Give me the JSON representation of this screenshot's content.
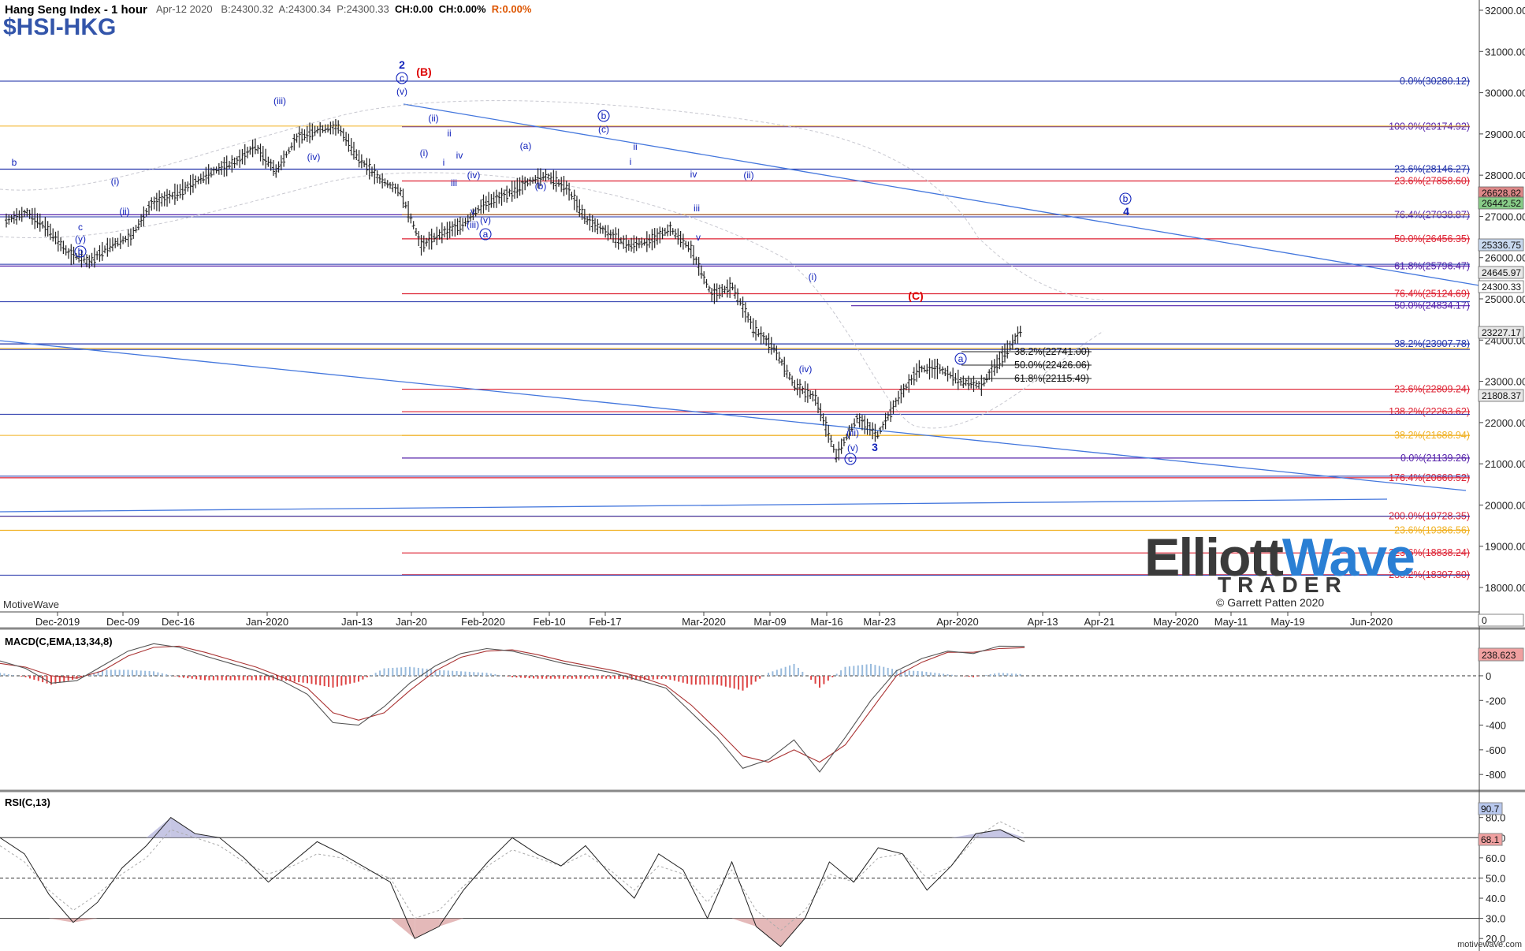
{
  "header": {
    "title": "Hang Seng Index - 1 hour",
    "symbol": "$HSI-HKG",
    "date": "Apr-12 2020",
    "bid": "B:24300.32",
    "ask": "A:24300.34",
    "last": "P:24300.33",
    "change": "CH:0.00",
    "change_pct": "CH:0.00%",
    "range": "R:0.00%"
  },
  "branding": {
    "app_name": "MotiveWave",
    "logo_line1_a": "Elliott",
    "logo_line1_b": "Wave",
    "logo_line2": "TRADER",
    "copyright": "© Garrett Patten 2020",
    "footer_url": "motivewave.com"
  },
  "colors": {
    "grid_blue": "#2233aa",
    "fib_red": "#dd2233",
    "fib_orange": "#f0b020",
    "fib_purple": "#5522aa",
    "trend_blue": "#4477dd",
    "price_bar": "#222222",
    "macd_pos": "#99bbdd",
    "macd_neg": "#dd4444",
    "rsi_fill_hi": "#b8b8dd",
    "rsi_fill_lo": "#dda8a8",
    "wave_label": "#1122bb",
    "wave_label_red": "#dd0000"
  },
  "chart_data": [
    {
      "type": "candlestick",
      "title": "Hang Seng Index - 1 hour",
      "x": [
        "Dec-2019",
        "Dec-09",
        "Dec-16",
        "Jan-2020",
        "Jan-13",
        "Jan-20",
        "Feb-2020",
        "Feb-10",
        "Feb-17",
        "Mar-2020",
        "Mar-09",
        "Mar-16",
        "Mar-23",
        "Apr-2020",
        "Apr-13",
        "Apr-21",
        "May-2020",
        "May-11",
        "May-19",
        "Jun-2020"
      ],
      "price_axis_ticks": [
        "32000.00",
        "31000.00",
        "30000.00",
        "29000.00",
        "28000.00",
        "27000.00",
        "26000.00",
        "25000.00",
        "24000.00",
        "23000.00",
        "22000.00",
        "21000.00",
        "20000.00",
        "19000.00",
        "18000.00"
      ],
      "ylim": [
        17600,
        32300
      ],
      "approx_path": [
        [
          "Dec-2019",
          26900
        ],
        [
          "Dec-02",
          27100
        ],
        [
          "Dec-03",
          26700
        ],
        [
          "Dec-04",
          26100
        ],
        [
          "Dec-06",
          25900
        ],
        [
          "Dec-09",
          26300
        ],
        [
          "Dec-11",
          26500
        ],
        [
          "Dec-13",
          27300
        ],
        [
          "Dec-16",
          27500
        ],
        [
          "Dec-20",
          27800
        ],
        [
          "Dec-27",
          28100
        ],
        [
          "Jan-2020",
          28300
        ],
        [
          "Jan-06",
          28700
        ],
        [
          "Jan-08",
          28100
        ],
        [
          "Jan-13",
          28900
        ],
        [
          "Jan-15",
          29100
        ],
        [
          "Jan-17",
          29170
        ],
        [
          "Jan-20",
          28400
        ],
        [
          "Jan-21",
          27900
        ],
        [
          "Jan-23",
          27600
        ],
        [
          "Feb-2020",
          26300
        ],
        [
          "Feb-03",
          26600
        ],
        [
          "Feb-05",
          26800
        ],
        [
          "Feb-07",
          27300
        ],
        [
          "Feb-10",
          27500
        ],
        [
          "Feb-14",
          27800
        ],
        [
          "Feb-17",
          28000
        ],
        [
          "Feb-19",
          27700
        ],
        [
          "Feb-24",
          26900
        ],
        [
          "Feb-26",
          26600
        ],
        [
          "Mar-2020",
          26300
        ],
        [
          "Mar-03",
          26400
        ],
        [
          "Mar-05",
          26700
        ],
        [
          "Mar-06",
          26200
        ],
        [
          "Mar-09",
          25100
        ],
        [
          "Mar-10",
          25300
        ],
        [
          "Mar-12",
          24300
        ],
        [
          "Mar-13",
          23800
        ],
        [
          "Mar-16",
          22900
        ],
        [
          "Mar-18",
          22600
        ],
        [
          "Mar-19",
          21200
        ],
        [
          "Mar-20",
          22100
        ],
        [
          "Mar-23",
          21700
        ],
        [
          "Mar-24",
          22600
        ],
        [
          "Mar-26",
          23300
        ],
        [
          "Mar-30",
          23300
        ],
        [
          "Apr-2020",
          23000
        ],
        [
          "Apr-03",
          22900
        ],
        [
          "Apr-07",
          23600
        ],
        [
          "Apr-09",
          24300
        ]
      ],
      "last_price": 24300.33
    },
    {
      "type": "line",
      "title": "MACD(C,EMA,13,34,8)",
      "y_ticks": [
        "0",
        "-200",
        "-400",
        "-600",
        "-800"
      ],
      "ylim": [
        -850,
        300
      ],
      "last_value_label": "238.623",
      "macd_approx": [
        120,
        60,
        -60,
        -40,
        80,
        200,
        260,
        230,
        160,
        100,
        40,
        -40,
        -150,
        -380,
        -400,
        -250,
        -60,
        80,
        180,
        220,
        200,
        150,
        100,
        60,
        20,
        -40,
        -100,
        -300,
        -500,
        -750,
        -680,
        -520,
        -780,
        -500,
        -200,
        40,
        140,
        200,
        180,
        240,
        238
      ],
      "signal_approx": [
        100,
        70,
        0,
        -20,
        40,
        160,
        230,
        240,
        190,
        130,
        70,
        -10,
        -100,
        -300,
        -360,
        -300,
        -120,
        40,
        150,
        200,
        210,
        170,
        120,
        80,
        40,
        -10,
        -80,
        -240,
        -440,
        -650,
        -700,
        -600,
        -700,
        -560,
        -280,
        0,
        110,
        190,
        190,
        220,
        228
      ]
    },
    {
      "type": "line",
      "title": "RSI(C,13)",
      "y_ticks": [
        "80.0",
        "70.0",
        "60.0",
        "50.0",
        "40.0",
        "30.0",
        "20.0"
      ],
      "ylim": [
        15,
        92
      ],
      "last_values": [
        "90.7",
        "68.1"
      ],
      "rsi_approx": [
        70,
        62,
        42,
        28,
        38,
        55,
        66,
        80,
        72,
        70,
        60,
        48,
        58,
        68,
        62,
        55,
        48,
        20,
        26,
        44,
        58,
        70,
        62,
        56,
        66,
        52,
        40,
        62,
        54,
        30,
        58,
        26,
        16,
        30,
        58,
        48,
        65,
        62,
        44,
        56,
        72,
        74,
        68
      ],
      "stoch_approx": [
        66,
        58,
        44,
        34,
        42,
        52,
        60,
        74,
        70,
        66,
        58,
        52,
        56,
        62,
        60,
        54,
        50,
        30,
        34,
        46,
        56,
        64,
        60,
        56,
        62,
        54,
        44,
        56,
        52,
        38,
        54,
        34,
        24,
        34,
        52,
        48,
        60,
        62,
        50,
        56,
        70,
        78,
        72
      ]
    }
  ],
  "horizontal_levels": [
    {
      "price": 30280.12,
      "label": "0.0%(30280.12)",
      "color": "#2233aa"
    },
    {
      "price": 29174.92,
      "label": "100.0%(29174.92)",
      "color": "#5522aa"
    },
    {
      "price": 28146.27,
      "label": "23.6%(28146.27)",
      "color": "#2233aa"
    },
    {
      "price": 27858.6,
      "label": "23.6%(27858.60)",
      "color": "#dd2233"
    },
    {
      "price": 27038.87,
      "label": "76.4%(27038.87)",
      "color": "#5522aa"
    },
    {
      "price": 26456.35,
      "label": "50.0%(26456.35)",
      "color": "#dd2233"
    },
    {
      "price": 25796.47,
      "label": "61.8%(25796.47)",
      "color": "#5522aa"
    },
    {
      "price": 25124.69,
      "label": "76.4%(25124.69)",
      "color": "#dd2233"
    },
    {
      "price": 24834.17,
      "label": "50.0%(24834.17)",
      "color": "#5522aa"
    },
    {
      "price": 23907.78,
      "label": "38.2%(23907.78)",
      "color": "#2233aa"
    },
    {
      "price": 22809.24,
      "label": "23.6%(22809.24)",
      "color": "#dd2233"
    },
    {
      "price": 22263.62,
      "label": "138.2%(22263.62)",
      "color": "#dd2233"
    },
    {
      "price": 21688.94,
      "label": "38.2%(21688.94)",
      "color": "#f0b020"
    },
    {
      "price": 21139.26,
      "label": "0.0%(21139.26)",
      "color": "#5522aa"
    },
    {
      "price": 20660.52,
      "label": "176.4%(20660.52)",
      "color": "#dd2233"
    },
    {
      "price": 19728.35,
      "label": "200.0%(19728.35)",
      "color": "#dd2233"
    },
    {
      "price": 19386.56,
      "label": "23.6%(19386.56)",
      "color": "#f0b020"
    },
    {
      "price": 18838.24,
      "label": "223.6%(18838.24)",
      "color": "#dd2233"
    },
    {
      "price": 18307.8,
      "label": "238.2%(18307.80)",
      "color": "#dd2233"
    }
  ],
  "mid_labels": [
    {
      "label": "38.2%(22741.00)"
    },
    {
      "label": "50.0%(22426.06)"
    },
    {
      "label": "61.8%(22115.49)"
    }
  ],
  "price_badges": [
    {
      "label": "26628.82",
      "bg": "#dd8888"
    },
    {
      "label": "26442.52",
      "bg": "#88cc88"
    },
    {
      "label": "25336.75",
      "bg": "#c8d8ee"
    },
    {
      "label": "24645.97",
      "bg": "#e8e8e8"
    },
    {
      "label": "24300.33",
      "bg": "#ffffff"
    },
    {
      "label": "23227.17",
      "bg": "#e8e8e8"
    },
    {
      "label": "21808.37",
      "bg": "#e8e8e8"
    },
    {
      "label": "0",
      "bg": "#ffffff"
    }
  ],
  "wave_labels": [
    {
      "text": "2",
      "color": "#1122bb",
      "bold": true
    },
    {
      "text": "c",
      "color": "#1122bb",
      "circle": true
    },
    {
      "text": "(v)",
      "color": "#1122bb"
    },
    {
      "text": "(B)",
      "color": "#dd0000",
      "bold": true
    },
    {
      "text": "(iii)",
      "color": "#1122bb"
    },
    {
      "text": "b",
      "color": "#1122bb"
    },
    {
      "text": "(i)",
      "color": "#1122bb"
    },
    {
      "text": "(ii)",
      "color": "#1122bb"
    },
    {
      "text": "c",
      "color": "#1122bb"
    },
    {
      "text": "(y)",
      "color": "#1122bb"
    },
    {
      "text": "b",
      "color": "#1122bb",
      "circle": true
    },
    {
      "text": "(iv)",
      "color": "#1122bb"
    },
    {
      "text": "(ii)",
      "color": "#1122bb"
    },
    {
      "text": "(i)",
      "color": "#1122bb"
    },
    {
      "text": "ii",
      "color": "#1122bb"
    },
    {
      "text": "i",
      "color": "#1122bb"
    },
    {
      "text": "iv",
      "color": "#1122bb"
    },
    {
      "text": "iii",
      "color": "#1122bb"
    },
    {
      "text": "(iv)",
      "color": "#1122bb"
    },
    {
      "text": "v",
      "color": "#1122bb"
    },
    {
      "text": "(v)",
      "color": "#1122bb"
    },
    {
      "text": "(iii)",
      "color": "#1122bb"
    },
    {
      "text": "a",
      "color": "#1122bb",
      "circle": true
    },
    {
      "text": "(a)",
      "color": "#1122bb"
    },
    {
      "text": "(b)",
      "color": "#1122bb"
    },
    {
      "text": "b",
      "color": "#1122bb",
      "circle": true
    },
    {
      "text": "(c)",
      "color": "#1122bb"
    },
    {
      "text": "ii",
      "color": "#1122bb"
    },
    {
      "text": "i",
      "color": "#1122bb"
    },
    {
      "text": "iv",
      "color": "#1122bb"
    },
    {
      "text": "(ii)",
      "color": "#1122bb"
    },
    {
      "text": "iii",
      "color": "#1122bb"
    },
    {
      "text": "v",
      "color": "#1122bb"
    },
    {
      "text": "(i)",
      "color": "#1122bb"
    },
    {
      "text": "(iv)",
      "color": "#1122bb"
    },
    {
      "text": "(iii)",
      "color": "#1122bb"
    },
    {
      "text": "(v)",
      "color": "#1122bb"
    },
    {
      "text": "c",
      "color": "#1122bb",
      "circle": true
    },
    {
      "text": "3",
      "color": "#1122bb",
      "bold": true
    },
    {
      "text": "(C)",
      "color": "#dd0000",
      "bold": true
    },
    {
      "text": "a",
      "color": "#1122bb",
      "circle": true
    },
    {
      "text": "b",
      "color": "#1122bb",
      "circle": true
    },
    {
      "text": "4",
      "color": "#1122bb",
      "bold": true
    },
    {
      "text": "c",
      "color": "#1122bb",
      "circle": true
    }
  ]
}
